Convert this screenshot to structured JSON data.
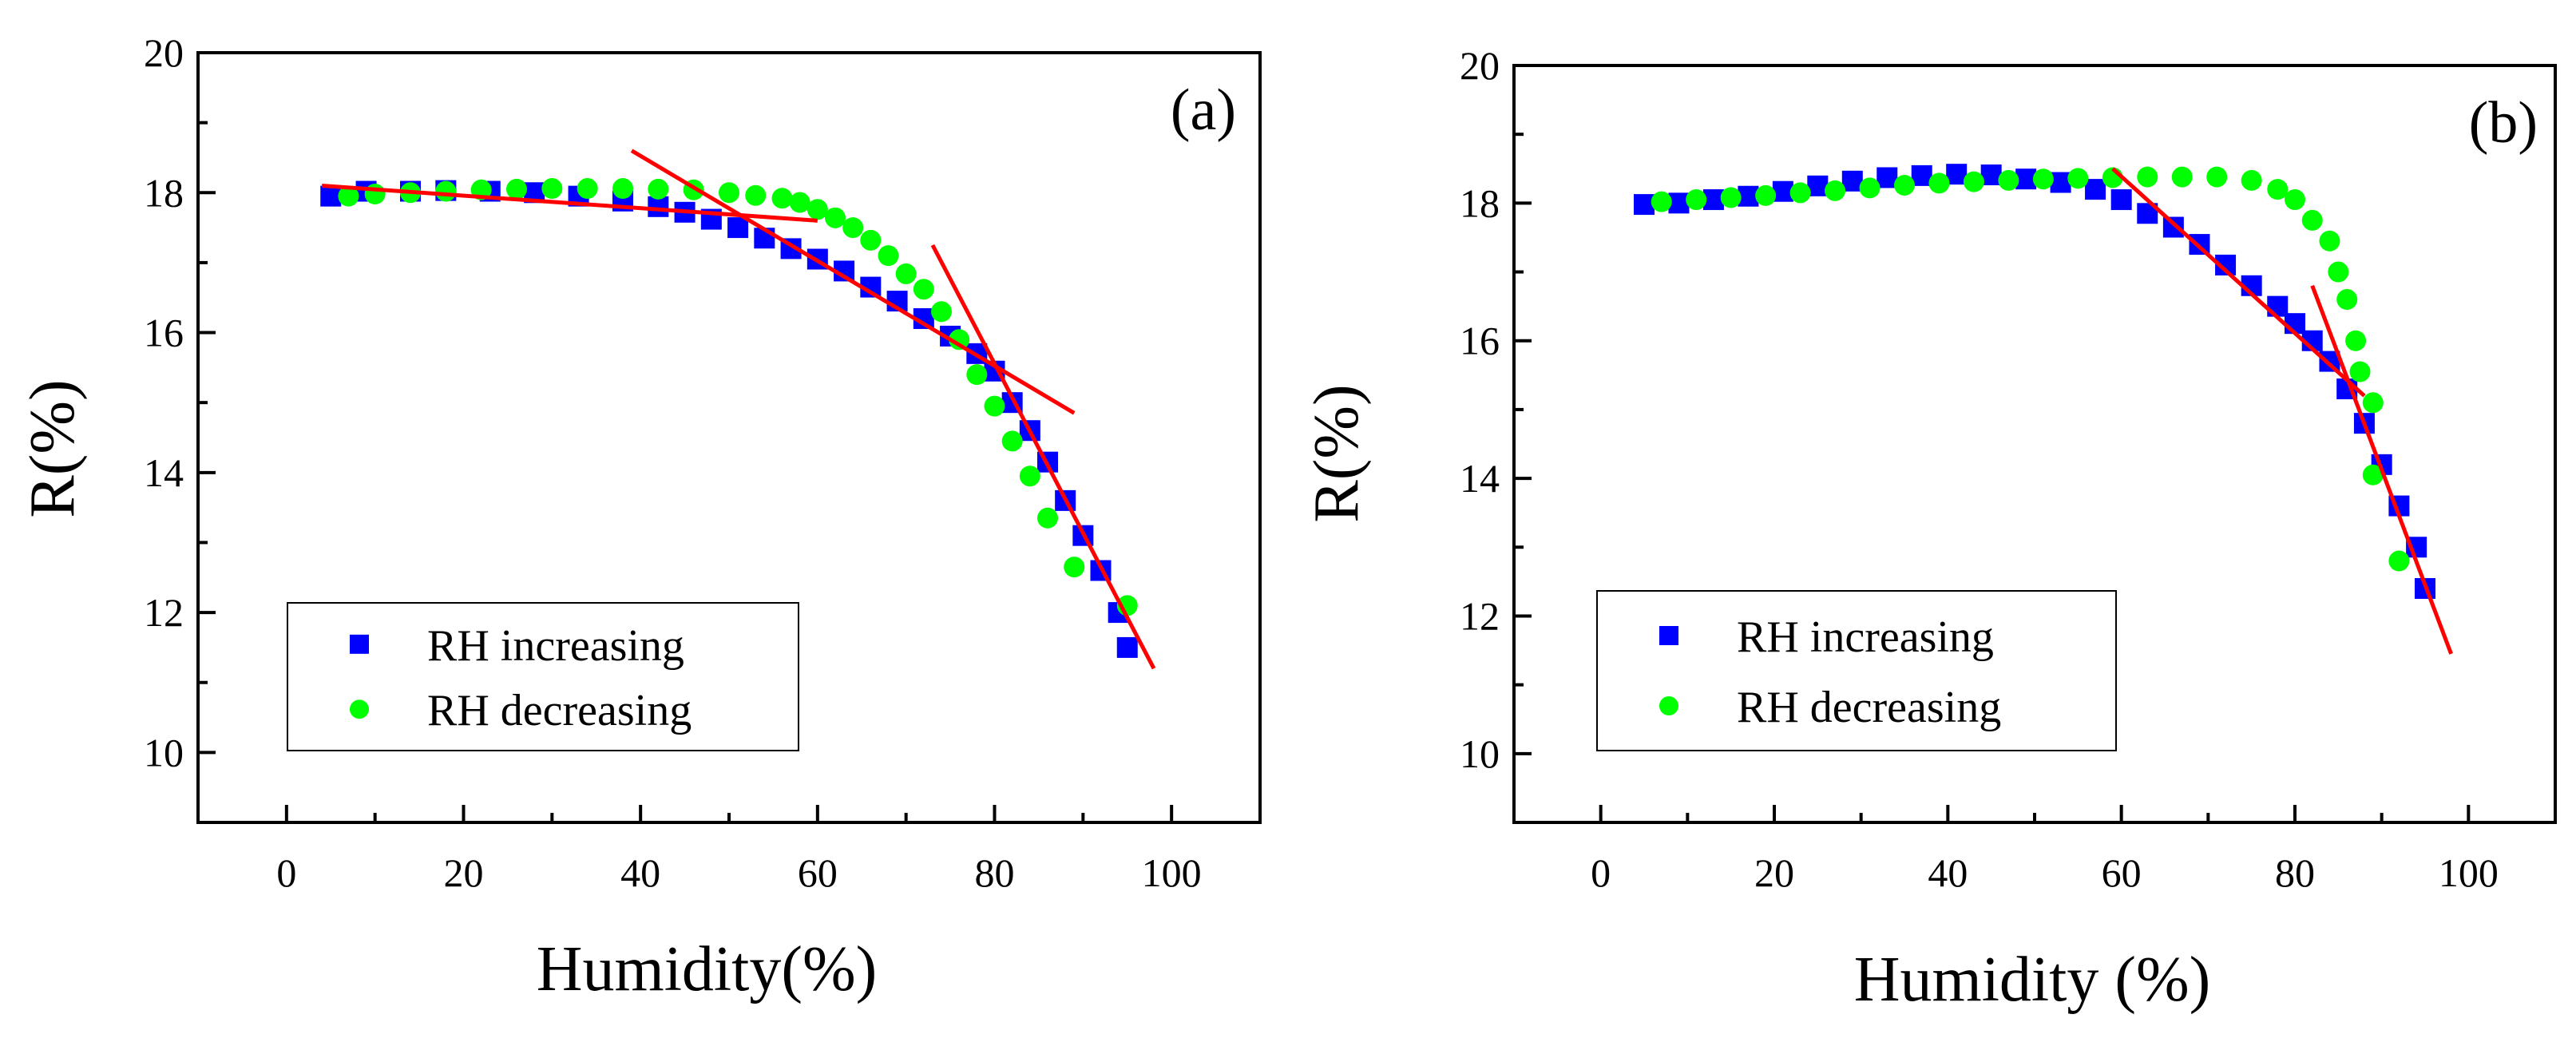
{
  "colors": {
    "increasing": "#0000ff",
    "decreasing": "#00ff00",
    "fit": "#ff0000",
    "axis": "#000000",
    "background": "#ffffff"
  },
  "chart_data": [
    {
      "panel": "(a)",
      "type": "scatter",
      "xlabel": "Humidity(%)",
      "ylabel": "R(%)",
      "xlim": [
        -10,
        110
      ],
      "ylim": [
        9,
        20
      ],
      "xticks": [
        0,
        20,
        40,
        60,
        80,
        100
      ],
      "yticks": [
        10,
        12,
        14,
        16,
        18,
        20
      ],
      "grid": false,
      "legend_position": "bottom-left",
      "series": [
        {
          "name": "RH increasing",
          "marker": "square",
          "color": "#0000ff",
          "x": [
            5,
            9,
            14,
            18,
            23,
            28,
            33,
            38,
            42,
            45,
            48,
            51,
            54,
            57,
            60,
            63,
            66,
            69,
            72,
            75,
            78,
            80,
            82,
            84,
            86,
            88,
            90,
            92,
            94,
            95
          ],
          "y": [
            17.95,
            18.02,
            18.02,
            18.03,
            18.02,
            18.0,
            17.95,
            17.88,
            17.8,
            17.72,
            17.62,
            17.5,
            17.35,
            17.2,
            17.05,
            16.88,
            16.65,
            16.45,
            16.2,
            15.95,
            15.7,
            15.45,
            15.0,
            14.6,
            14.15,
            13.6,
            13.1,
            12.6,
            12.0,
            11.5
          ]
        },
        {
          "name": "RH decreasing",
          "marker": "circle",
          "color": "#00ff00",
          "x": [
            7,
            10,
            14,
            18,
            22,
            26,
            30,
            34,
            38,
            42,
            46,
            50,
            53,
            56,
            58,
            60,
            62,
            64,
            66,
            68,
            70,
            72,
            74,
            76,
            78,
            80,
            82,
            84,
            86,
            89,
            95
          ],
          "y": [
            17.95,
            17.98,
            18.0,
            18.02,
            18.04,
            18.05,
            18.06,
            18.06,
            18.06,
            18.05,
            18.04,
            18.0,
            17.96,
            17.92,
            17.86,
            17.76,
            17.64,
            17.5,
            17.32,
            17.1,
            16.84,
            16.62,
            16.3,
            15.9,
            15.4,
            14.95,
            14.45,
            13.95,
            13.35,
            12.65,
            12.1
          ]
        }
      ],
      "fit_lines": [
        {
          "x": [
            4,
            60
          ],
          "y": [
            18.1,
            17.6
          ]
        },
        {
          "x": [
            39,
            89
          ],
          "y": [
            18.6,
            14.85
          ]
        },
        {
          "x": [
            73,
            98
          ],
          "y": [
            17.25,
            11.2
          ]
        }
      ]
    },
    {
      "panel": "(b)",
      "type": "scatter",
      "xlabel": "Humidity (%)",
      "ylabel": "R(%)",
      "xlim": [
        -10,
        110
      ],
      "ylim": [
        9,
        20
      ],
      "xticks": [
        0,
        20,
        40,
        60,
        80,
        100
      ],
      "yticks": [
        10,
        12,
        14,
        16,
        18,
        20
      ],
      "grid": false,
      "legend_position": "bottom-left",
      "series": [
        {
          "name": "RH increasing",
          "marker": "square",
          "color": "#0000ff",
          "x": [
            5,
            9,
            13,
            17,
            21,
            25,
            29,
            33,
            37,
            41,
            45,
            49,
            53,
            57,
            60,
            63,
            66,
            69,
            72,
            75,
            78,
            80,
            82,
            84,
            86,
            88,
            90,
            92,
            94,
            95
          ],
          "y": [
            17.98,
            18.0,
            18.05,
            18.1,
            18.17,
            18.25,
            18.32,
            18.37,
            18.4,
            18.42,
            18.41,
            18.35,
            18.3,
            18.2,
            18.05,
            17.85,
            17.65,
            17.4,
            17.1,
            16.8,
            16.5,
            16.25,
            16.0,
            15.7,
            15.3,
            14.8,
            14.2,
            13.6,
            13.0,
            12.4
          ]
        },
        {
          "name": "RH decreasing",
          "marker": "circle",
          "color": "#00ff00",
          "x": [
            7,
            11,
            15,
            19,
            23,
            27,
            31,
            35,
            39,
            43,
            47,
            51,
            55,
            59,
            63,
            67,
            71,
            75,
            78,
            80,
            82,
            84,
            85,
            86,
            87,
            87.5,
            89,
            89,
            92
          ],
          "y": [
            18.02,
            18.05,
            18.08,
            18.11,
            18.15,
            18.18,
            18.22,
            18.26,
            18.29,
            18.31,
            18.33,
            18.35,
            18.36,
            18.37,
            18.38,
            18.38,
            18.38,
            18.33,
            18.2,
            18.05,
            17.75,
            17.45,
            17.0,
            16.6,
            16.0,
            15.55,
            15.1,
            14.05,
            12.8
          ]
        }
      ],
      "fit_lines": [
        {
          "x": [
            59,
            88
          ],
          "y": [
            18.5,
            15.2
          ]
        },
        {
          "x": [
            82,
            98
          ],
          "y": [
            16.8,
            11.45
          ]
        }
      ]
    }
  ]
}
